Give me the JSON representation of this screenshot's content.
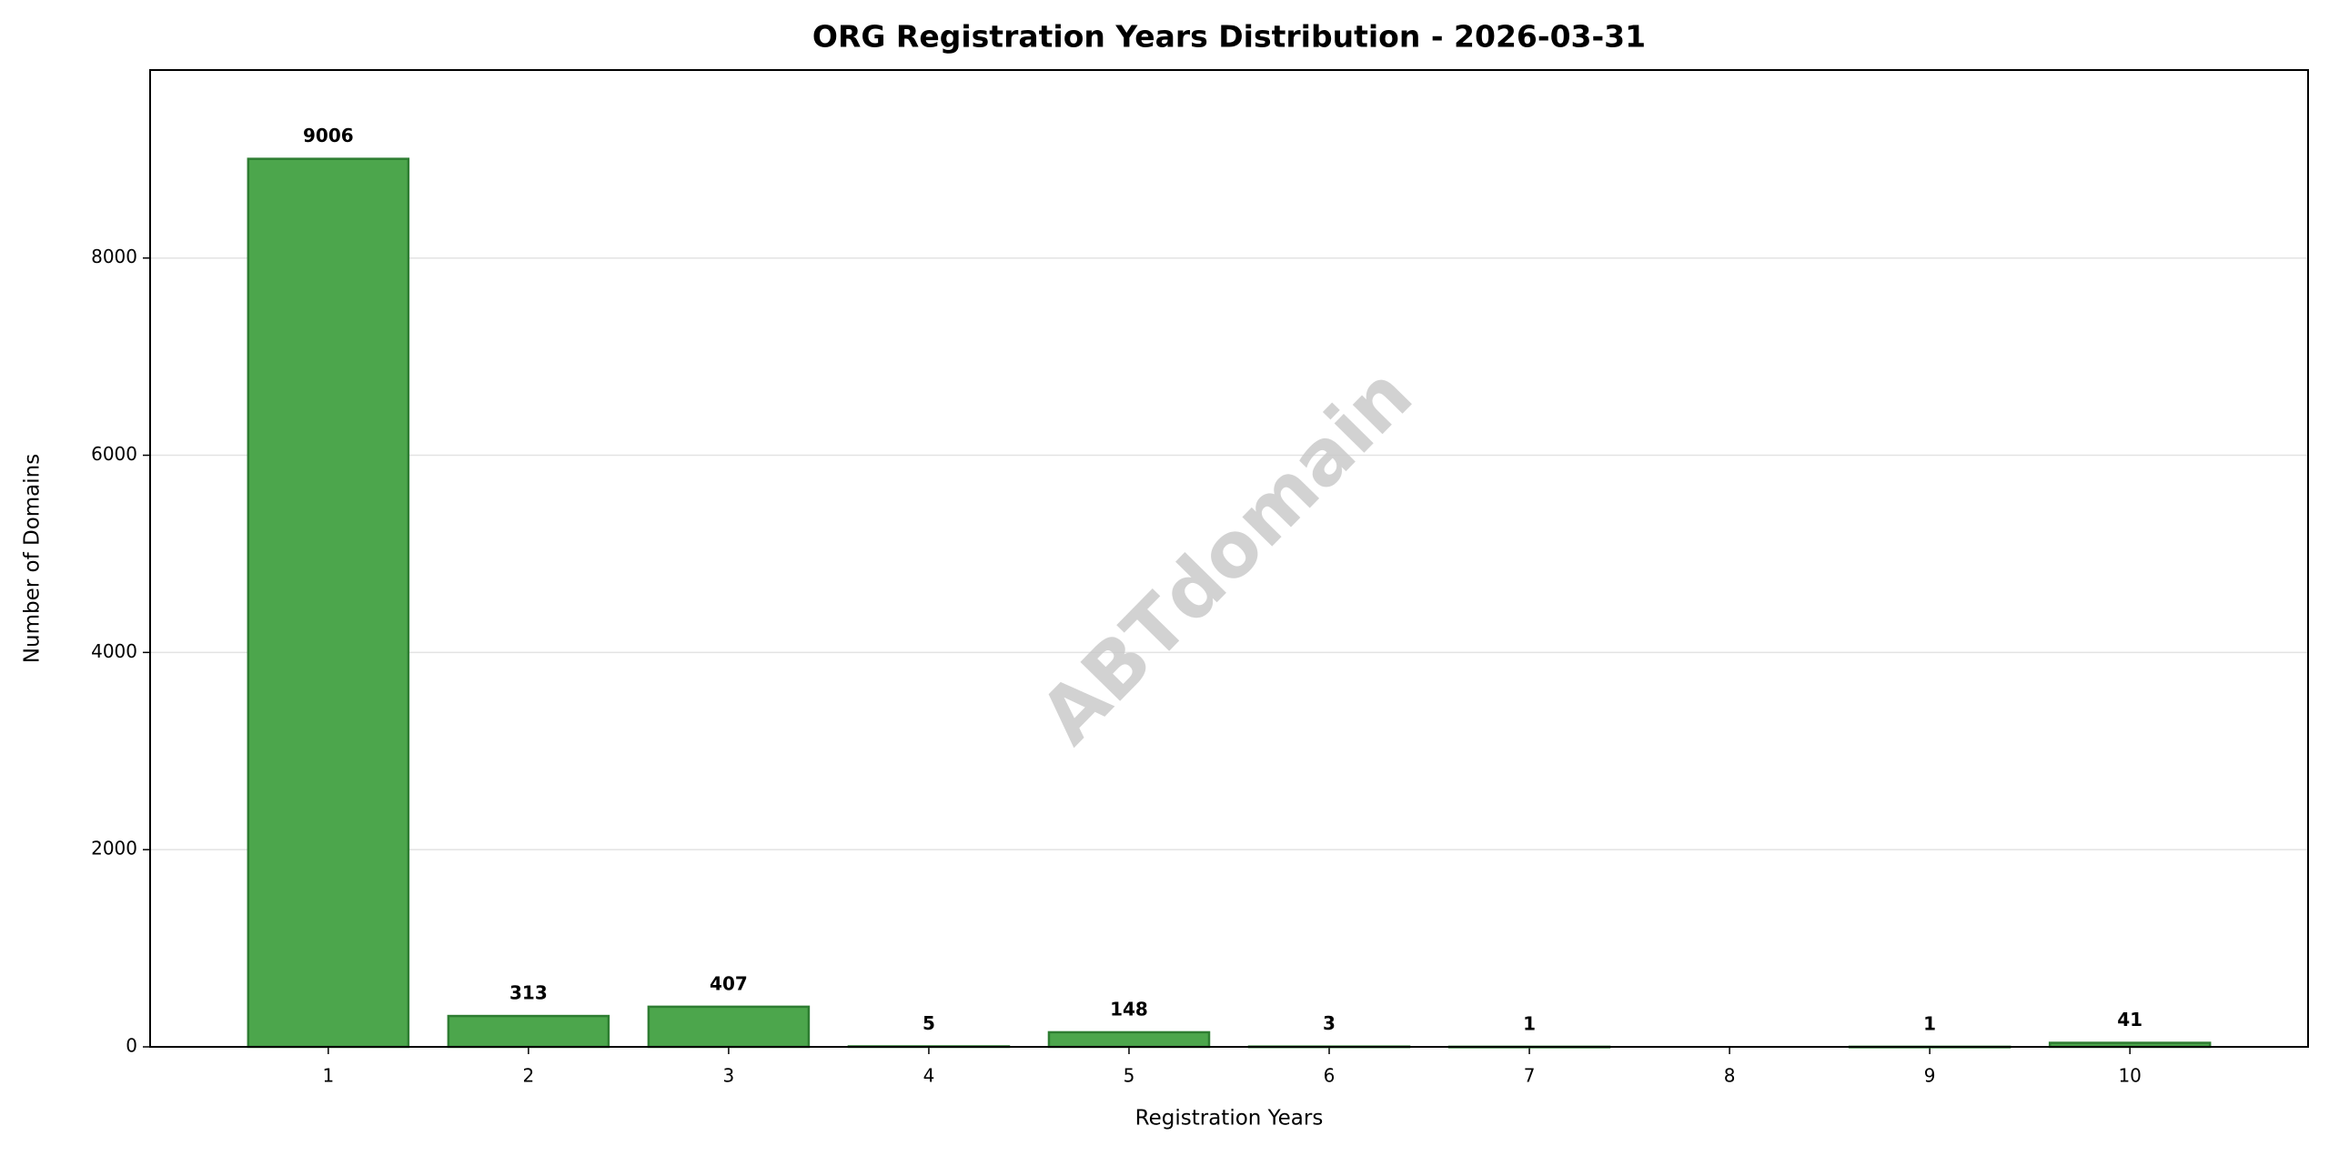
{
  "chart_data": {
    "type": "bar",
    "title": "ORG Registration Years Distribution - 2026-03-31",
    "x_label": "Registration Years",
    "y_label": "Number of Domains",
    "watermark": "ABTdomain",
    "x": [
      1,
      2,
      3,
      4,
      5,
      6,
      7,
      9,
      10
    ],
    "values": [
      9006,
      313,
      407,
      5,
      148,
      3,
      1,
      1,
      41
    ],
    "color": "#4ca64c",
    "edge_color": "#2e7d32",
    "bar_width": 0.8,
    "xlim": [
      0.11,
      10.89
    ],
    "xticks": [
      1,
      2,
      3,
      4,
      5,
      6,
      7,
      8,
      9,
      10
    ],
    "ylim": [
      0,
      9906.6
    ],
    "yticks": [
      0,
      2000,
      4000,
      6000,
      8000
    ],
    "grid": "y"
  }
}
